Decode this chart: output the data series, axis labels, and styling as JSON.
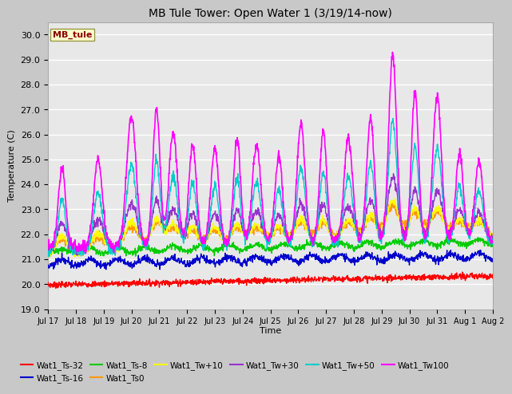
{
  "title": "MB Tule Tower: Open Water 1 (3/19/14-now)",
  "xlabel": "Time",
  "ylabel": "Temperature (C)",
  "ylim": [
    19.0,
    30.5
  ],
  "yticks": [
    19.0,
    20.0,
    21.0,
    22.0,
    23.0,
    24.0,
    25.0,
    26.0,
    27.0,
    28.0,
    29.0,
    30.0
  ],
  "fig_bg": "#c8c8c8",
  "plot_bg": "#e8e8e8",
  "n_days": 16,
  "start_day": 17,
  "pts_per_day": 96,
  "series_order": [
    "Wat1_Ts-32",
    "Wat1_Ts-16",
    "Wat1_Ts-8",
    "Wat1_Ts0",
    "Wat1_Tw+10",
    "Wat1_Tw+30",
    "Wat1_Tw+50",
    "Wat1_Tw100"
  ],
  "series": {
    "Wat1_Ts-32": {
      "color": "#ff0000",
      "lw": 1.0
    },
    "Wat1_Ts-16": {
      "color": "#0000cc",
      "lw": 1.0
    },
    "Wat1_Ts-8": {
      "color": "#00cc00",
      "lw": 1.0
    },
    "Wat1_Ts0": {
      "color": "#ff9900",
      "lw": 1.0
    },
    "Wat1_Tw+10": {
      "color": "#ffff00",
      "lw": 1.0
    },
    "Wat1_Tw+30": {
      "color": "#9933cc",
      "lw": 1.0
    },
    "Wat1_Tw+50": {
      "color": "#00cccc",
      "lw": 1.0
    },
    "Wat1_Tw100": {
      "color": "#ff00ff",
      "lw": 1.2
    }
  },
  "legend_row1": [
    "Wat1_Ts-32",
    "Wat1_Ts-16",
    "Wat1_Ts-8",
    "Wat1_Ts0",
    "Wat1_Tw+10",
    "Wat1_Tw+30"
  ],
  "legend_row2": [
    "Wat1_Tw+50",
    "Wat1_Tw100"
  ]
}
